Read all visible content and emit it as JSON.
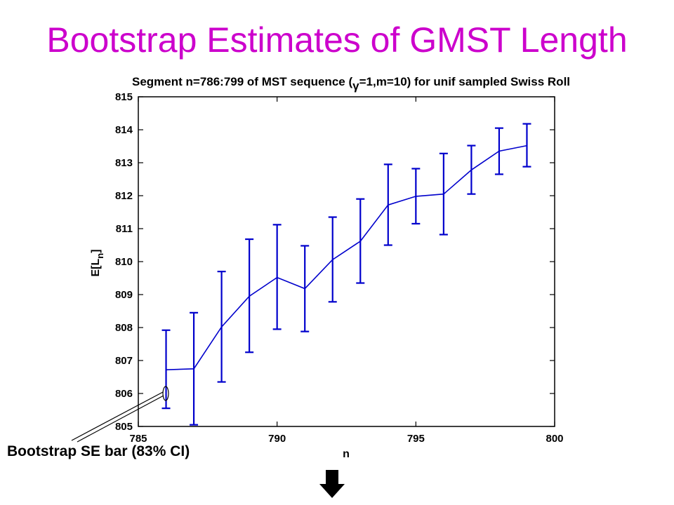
{
  "slide": {
    "title": "Bootstrap Estimates of GMST Length",
    "callout": "Bootstrap SE bar (83% CI)"
  },
  "colors": {
    "title": "#cc00cc",
    "series": "#0000cc",
    "axis": "#000000"
  },
  "icons": {
    "next": "down-arrow-icon"
  },
  "chart_data": {
    "type": "line",
    "title_parts": {
      "before": "Segment n=786:799 of MST sequence (",
      "symbol": "γ",
      "after": "=1,m=10) for unif sampled Swiss Roll"
    },
    "xlabel": "n",
    "ylabel_base": "E[L",
    "ylabel_sub": "n",
    "ylabel_end": "]",
    "xlim": [
      785,
      800
    ],
    "ylim": [
      805,
      815
    ],
    "xticks": [
      785,
      790,
      795,
      800
    ],
    "yticks": [
      805,
      806,
      807,
      808,
      809,
      810,
      811,
      812,
      813,
      814,
      815
    ],
    "grid": false,
    "series": [
      {
        "x": [
          786,
          787,
          788,
          789,
          790,
          791,
          792,
          793,
          794,
          795,
          796,
          797,
          798,
          799
        ],
        "y": [
          806.72,
          806.75,
          808.02,
          808.95,
          809.52,
          809.18,
          810.06,
          810.62,
          811.72,
          811.98,
          812.05,
          812.78,
          813.35,
          813.52
        ],
        "lower": [
          805.55,
          805.05,
          806.35,
          807.25,
          807.95,
          807.88,
          808.78,
          809.35,
          810.5,
          811.15,
          810.82,
          812.05,
          812.65,
          812.88
        ],
        "upper": [
          807.92,
          808.45,
          809.7,
          810.68,
          811.12,
          810.48,
          811.35,
          811.9,
          812.95,
          812.82,
          813.28,
          813.52,
          814.05,
          814.18
        ]
      }
    ]
  }
}
